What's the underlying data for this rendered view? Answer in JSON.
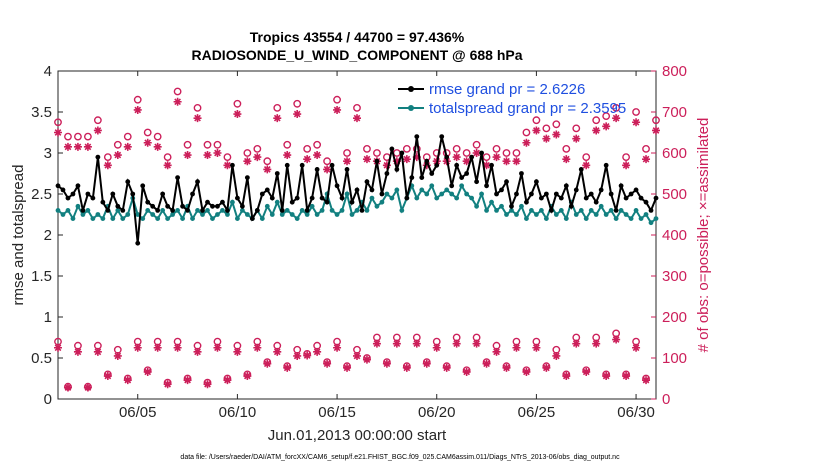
{
  "chart_data": {
    "type": "line",
    "title": "Tropics 43554 / 44700 = 97.436%",
    "subtitle": "RADIOSONDE_U_WIND_COMPONENT @ 688 hPa",
    "xlabel": "Jun.01,2013 00:00:00 start",
    "ylabel_left": "rmse and totalspread",
    "ylabel_right": "# of obs: o=possible; ×=assimilated",
    "footer": "data file: /Users/raeder/DAI/ATM_forcXX/CAM6_setup/f.e21.FHIST_BGC.f09_025.CAM6assim.011/Diags_NTrS_2013-06/obs_diag_output.nc",
    "xlim": [
      1,
      31
    ],
    "ylim_left": [
      0,
      4
    ],
    "ylim_right": [
      0,
      800
    ],
    "x_ticks": [
      {
        "x": 5,
        "label": "06/05"
      },
      {
        "x": 10,
        "label": "06/10"
      },
      {
        "x": 15,
        "label": "06/15"
      },
      {
        "x": 20,
        "label": "06/20"
      },
      {
        "x": 25,
        "label": "06/25"
      },
      {
        "x": 30,
        "label": "06/30"
      }
    ],
    "y_ticks_left": [
      "0",
      "0.5",
      "1",
      "1.5",
      "2",
      "2.5",
      "3",
      "3.5",
      "4"
    ],
    "y_ticks_right": [
      "0",
      "100",
      "200",
      "300",
      "400",
      "500",
      "600",
      "700",
      "800"
    ],
    "colors": {
      "rmse": "#000000",
      "spread": "#128080",
      "obs": "#cc1f5a",
      "legend_text": "#1f4fe0"
    },
    "legend": [
      {
        "label": "rmse grand pr = 2.6226"
      },
      {
        "label": "totalspread grand pr = 2.3595"
      }
    ],
    "series": [
      {
        "name": "rmse",
        "x": [
          1.0,
          1.25,
          1.5,
          1.75,
          2.0,
          2.25,
          2.5,
          2.75,
          3.0,
          3.25,
          3.5,
          3.75,
          4.0,
          4.25,
          4.5,
          4.75,
          5.0,
          5.25,
          5.5,
          5.75,
          6.0,
          6.25,
          6.5,
          6.75,
          7.0,
          7.25,
          7.5,
          7.75,
          8.0,
          8.25,
          8.5,
          8.75,
          9.0,
          9.25,
          9.5,
          9.75,
          10.0,
          10.25,
          10.5,
          10.75,
          11.0,
          11.25,
          11.5,
          11.75,
          12.0,
          12.25,
          12.5,
          12.75,
          13.0,
          13.25,
          13.5,
          13.75,
          14.0,
          14.25,
          14.5,
          14.75,
          15.0,
          15.25,
          15.5,
          15.75,
          16.0,
          16.25,
          16.5,
          16.75,
          17.0,
          17.25,
          17.5,
          17.75,
          18.0,
          18.25,
          18.5,
          18.75,
          19.0,
          19.25,
          19.5,
          19.75,
          20.0,
          20.25,
          20.5,
          20.75,
          21.0,
          21.25,
          21.5,
          21.75,
          22.0,
          22.25,
          22.5,
          22.75,
          23.0,
          23.25,
          23.5,
          23.75,
          24.0,
          24.25,
          24.5,
          24.75,
          25.0,
          25.25,
          25.5,
          25.75,
          26.0,
          26.25,
          26.5,
          26.75,
          27.0,
          27.25,
          27.5,
          27.75,
          28.0,
          28.25,
          28.5,
          28.75,
          29.0,
          29.25,
          29.5,
          29.75,
          30.0,
          30.25,
          30.5,
          30.75,
          31.0
        ],
        "values": [
          2.6,
          2.55,
          2.45,
          2.5,
          2.6,
          2.3,
          2.5,
          2.45,
          2.95,
          2.4,
          2.3,
          2.5,
          2.35,
          2.3,
          2.65,
          2.5,
          1.9,
          2.6,
          2.4,
          2.35,
          2.3,
          2.5,
          2.35,
          2.3,
          2.7,
          2.35,
          2.3,
          2.5,
          2.65,
          2.3,
          2.4,
          2.35,
          2.35,
          2.4,
          2.3,
          2.85,
          2.45,
          2.35,
          2.7,
          2.2,
          2.3,
          2.5,
          2.55,
          2.45,
          2.75,
          2.3,
          2.85,
          2.4,
          2.45,
          2.85,
          2.3,
          2.45,
          2.8,
          2.45,
          2.4,
          2.85,
          2.6,
          2.45,
          2.8,
          2.4,
          2.55,
          2.3,
          2.65,
          2.55,
          2.9,
          2.5,
          2.75,
          3.05,
          2.8,
          3.0,
          2.45,
          2.7,
          3.2,
          2.7,
          2.9,
          2.75,
          2.85,
          3.2,
          2.95,
          2.6,
          2.85,
          2.7,
          2.75,
          2.95,
          2.65,
          3.0,
          2.6,
          2.85,
          2.5,
          2.55,
          2.65,
          2.35,
          2.5,
          2.75,
          2.4,
          2.5,
          2.65,
          2.45,
          2.5,
          2.3,
          2.5,
          2.45,
          2.6,
          2.35,
          2.55,
          2.8,
          2.45,
          2.5,
          2.4,
          2.55,
          2.85,
          2.5,
          2.3,
          2.6,
          2.45,
          2.5,
          2.55,
          2.45,
          2.4,
          2.3,
          2.45
        ]
      },
      {
        "name": "totalspread",
        "x": [
          1.0,
          1.25,
          1.5,
          1.75,
          2.0,
          2.25,
          2.5,
          2.75,
          3.0,
          3.25,
          3.5,
          3.75,
          4.0,
          4.25,
          4.5,
          4.75,
          5.0,
          5.25,
          5.5,
          5.75,
          6.0,
          6.25,
          6.5,
          6.75,
          7.0,
          7.25,
          7.5,
          7.75,
          8.0,
          8.25,
          8.5,
          8.75,
          9.0,
          9.25,
          9.5,
          9.75,
          10.0,
          10.25,
          10.5,
          10.75,
          11.0,
          11.25,
          11.5,
          11.75,
          12.0,
          12.25,
          12.5,
          12.75,
          13.0,
          13.25,
          13.5,
          13.75,
          14.0,
          14.25,
          14.5,
          14.75,
          15.0,
          15.25,
          15.5,
          15.75,
          16.0,
          16.25,
          16.5,
          16.75,
          17.0,
          17.25,
          17.5,
          17.75,
          18.0,
          18.25,
          18.5,
          18.75,
          19.0,
          19.25,
          19.5,
          19.75,
          20.0,
          20.25,
          20.5,
          20.75,
          21.0,
          21.25,
          21.5,
          21.75,
          22.0,
          22.25,
          22.5,
          22.75,
          23.0,
          23.25,
          23.5,
          23.75,
          24.0,
          24.25,
          24.5,
          24.75,
          25.0,
          25.25,
          25.5,
          25.75,
          26.0,
          26.25,
          26.5,
          26.75,
          27.0,
          27.25,
          27.5,
          27.75,
          28.0,
          28.25,
          28.5,
          28.75,
          29.0,
          29.25,
          29.5,
          29.75,
          30.0,
          30.25,
          30.5,
          30.75,
          31.0
        ],
        "values": [
          2.3,
          2.25,
          2.3,
          2.2,
          2.35,
          2.25,
          2.3,
          2.2,
          2.25,
          2.2,
          2.35,
          2.2,
          2.3,
          2.2,
          2.25,
          2.45,
          2.25,
          2.2,
          2.3,
          2.25,
          2.2,
          2.3,
          2.2,
          2.25,
          2.3,
          2.2,
          2.35,
          2.2,
          2.3,
          2.25,
          2.3,
          2.2,
          2.25,
          2.3,
          2.25,
          2.4,
          2.2,
          2.3,
          2.25,
          2.2,
          2.3,
          2.2,
          2.35,
          2.25,
          2.4,
          2.25,
          2.3,
          2.25,
          2.2,
          2.3,
          2.25,
          2.35,
          2.25,
          2.3,
          2.5,
          2.3,
          2.25,
          2.3,
          2.5,
          2.25,
          2.3,
          2.4,
          2.3,
          2.45,
          2.35,
          2.4,
          2.5,
          2.45,
          2.55,
          2.3,
          2.45,
          2.6,
          2.45,
          2.55,
          2.5,
          2.6,
          2.45,
          2.5,
          2.55,
          2.5,
          2.45,
          2.6,
          2.5,
          2.45,
          2.35,
          2.5,
          2.3,
          2.4,
          2.3,
          2.35,
          2.25,
          2.3,
          2.25,
          2.35,
          2.2,
          2.3,
          2.25,
          2.3,
          2.2,
          2.35,
          2.25,
          2.3,
          2.2,
          2.4,
          2.25,
          2.3,
          2.2,
          2.3,
          2.25,
          2.35,
          2.25,
          2.3,
          2.2,
          2.3,
          2.25,
          2.2,
          2.3,
          2.2,
          2.25,
          2.15,
          2.2
        ]
      },
      {
        "name": "obs_possible_00z",
        "x": [
          1,
          2,
          3,
          4,
          5,
          6,
          7,
          8,
          9,
          10,
          11,
          12,
          13,
          14,
          15,
          16,
          17,
          18,
          19,
          20,
          21,
          22,
          23,
          24,
          25,
          26,
          27,
          28,
          29,
          30,
          31
        ],
        "values": [
          675,
          640,
          680,
          620,
          730,
          640,
          750,
          710,
          620,
          720,
          610,
          710,
          720,
          620,
          730,
          710,
          600,
          600,
          610,
          600,
          610,
          620,
          610,
          600,
          680,
          670,
          660,
          680,
          710,
          700,
          680
        ]
      },
      {
        "name": "obs_assimilated_00z",
        "x": [
          1,
          2,
          3,
          4,
          5,
          6,
          7,
          8,
          9,
          10,
          11,
          12,
          13,
          14,
          15,
          16,
          17,
          18,
          19,
          20,
          21,
          22,
          23,
          24,
          25,
          26,
          27,
          28,
          29,
          30,
          31
        ],
        "values": [
          650,
          615,
          655,
          595,
          705,
          615,
          725,
          685,
          600,
          695,
          590,
          685,
          695,
          595,
          705,
          685,
          580,
          580,
          590,
          580,
          590,
          600,
          590,
          580,
          655,
          645,
          635,
          655,
          685,
          675,
          655
        ]
      },
      {
        "name": "obs_possible_12z",
        "x": [
          1.5,
          2.5,
          3.5,
          4.5,
          5.5,
          6.5,
          7.5,
          8.5,
          9.5,
          10.5,
          11.5,
          12.5,
          13.5,
          14.5,
          15.5,
          16.5,
          17.5,
          18.5,
          19.5,
          20.5,
          21.5,
          22.5,
          23.5,
          24.5,
          25.5,
          26.5,
          27.5,
          28.5,
          29.5,
          30.5
        ],
        "values": [
          640,
          640,
          590,
          640,
          650,
          590,
          620,
          620,
          590,
          600,
          580,
          620,
          610,
          580,
          600,
          610,
          590,
          610,
          590,
          600,
          600,
          590,
          600,
          650,
          660,
          610,
          590,
          690,
          590,
          610
        ]
      },
      {
        "name": "obs_assimilated_12z",
        "x": [
          1.5,
          2.5,
          3.5,
          4.5,
          5.5,
          6.5,
          7.5,
          8.5,
          9.5,
          10.5,
          11.5,
          12.5,
          13.5,
          14.5,
          15.5,
          16.5,
          17.5,
          18.5,
          19.5,
          20.5,
          21.5,
          22.5,
          23.5,
          24.5,
          25.5,
          26.5,
          27.5,
          28.5,
          29.5,
          30.5
        ],
        "values": [
          615,
          615,
          570,
          615,
          625,
          570,
          595,
          595,
          570,
          580,
          560,
          595,
          585,
          560,
          580,
          585,
          570,
          585,
          570,
          580,
          580,
          570,
          580,
          625,
          635,
          585,
          570,
          665,
          570,
          585
        ]
      },
      {
        "name": "obs_possible_06z",
        "x": [
          1.0,
          2.0,
          3.0,
          4.0,
          5.0,
          6.0,
          7.0,
          8.0,
          9.0,
          10.0,
          11.0,
          12.0,
          13.0,
          14.0,
          15.0,
          16.0,
          17.0,
          18.0,
          19.0,
          20.0,
          21.0,
          22.0,
          23.0,
          24.0,
          25.0,
          26.0,
          27.0,
          28.0,
          29.0,
          30.0
        ],
        "values": [
          140,
          130,
          130,
          120,
          140,
          140,
          140,
          130,
          140,
          130,
          140,
          130,
          120,
          130,
          140,
          120,
          150,
          150,
          150,
          140,
          150,
          150,
          130,
          140,
          140,
          120,
          150,
          150,
          160,
          140
        ]
      },
      {
        "name": "obs_assimilated_06z",
        "x": [
          1.0,
          2.0,
          3.0,
          4.0,
          5.0,
          6.0,
          7.0,
          8.0,
          9.0,
          10.0,
          11.0,
          12.0,
          13.0,
          14.0,
          15.0,
          16.0,
          17.0,
          18.0,
          19.0,
          20.0,
          21.0,
          22.0,
          23.0,
          24.0,
          25.0,
          26.0,
          27.0,
          28.0,
          29.0,
          30.0
        ],
        "values": [
          125,
          115,
          115,
          105,
          125,
          125,
          125,
          115,
          125,
          115,
          125,
          115,
          105,
          115,
          125,
          105,
          135,
          135,
          135,
          125,
          135,
          135,
          115,
          125,
          125,
          105,
          135,
          135,
          145,
          125
        ]
      },
      {
        "name": "obs_possible_18z",
        "x": [
          1.5,
          2.5,
          3.5,
          4.5,
          5.5,
          6.5,
          7.5,
          8.5,
          9.5,
          10.5,
          11.5,
          12.5,
          13.5,
          14.5,
          15.5,
          16.5,
          17.5,
          18.5,
          19.5,
          20.5,
          21.5,
          22.5,
          23.5,
          24.5,
          25.5,
          26.5,
          27.5,
          28.5,
          29.5,
          30.5
        ],
        "values": [
          30,
          30,
          60,
          50,
          70,
          40,
          50,
          40,
          50,
          60,
          90,
          80,
          110,
          90,
          80,
          100,
          90,
          80,
          90,
          80,
          70,
          90,
          80,
          70,
          80,
          60,
          70,
          60,
          60,
          50
        ]
      },
      {
        "name": "obs_assimilated_18z",
        "x": [
          1.5,
          2.5,
          3.5,
          4.5,
          5.5,
          6.5,
          7.5,
          8.5,
          9.5,
          10.5,
          11.5,
          12.5,
          13.5,
          14.5,
          15.5,
          16.5,
          17.5,
          18.5,
          19.5,
          20.5,
          21.5,
          22.5,
          23.5,
          24.5,
          25.5,
          26.5,
          27.5,
          28.5,
          29.5,
          30.5
        ],
        "values": [
          28,
          28,
          56,
          46,
          66,
          36,
          46,
          36,
          46,
          56,
          86,
          76,
          106,
          86,
          76,
          96,
          86,
          76,
          86,
          76,
          66,
          86,
          76,
          66,
          76,
          56,
          66,
          56,
          56,
          46
        ]
      }
    ]
  }
}
